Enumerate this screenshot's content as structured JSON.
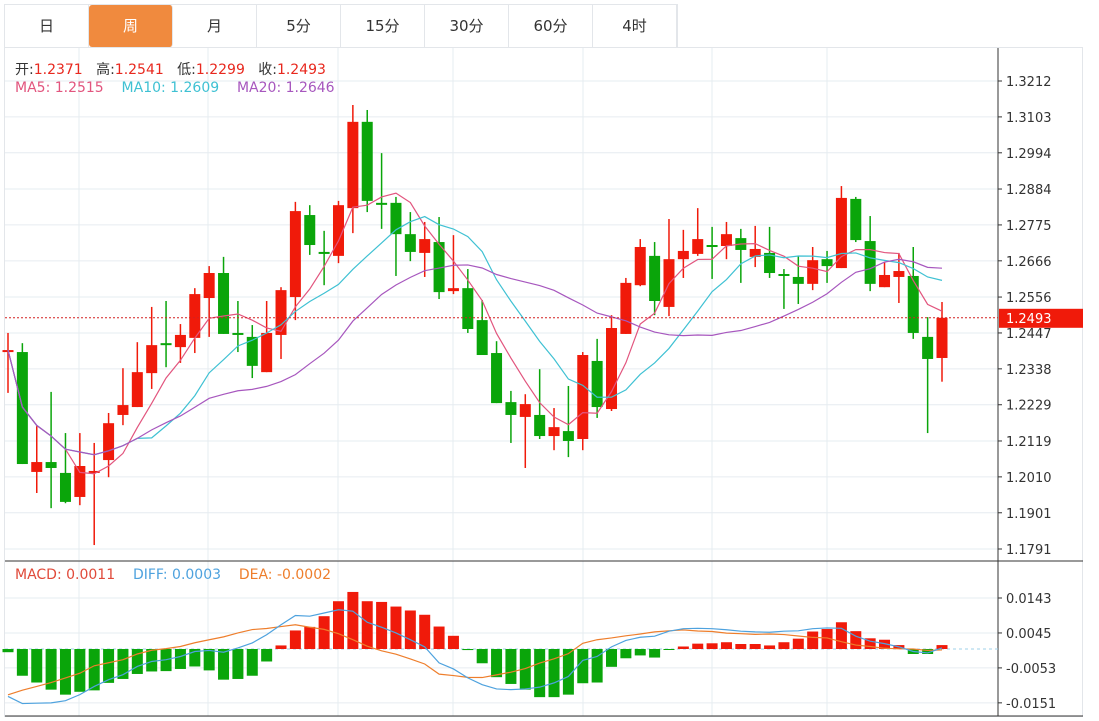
{
  "tabs": [
    "日",
    "周",
    "月",
    "5分",
    "15分",
    "30分",
    "60分",
    "4时"
  ],
  "active_tab": "周",
  "ohlc_legend": {
    "open_label": "开:",
    "open": "1.2371",
    "high_label": "高:",
    "high": "1.2541",
    "low_label": "低:",
    "low": "1.2299",
    "close_label": "收:",
    "close": "1.2493"
  },
  "ma_legend": {
    "ma5": "MA5: 1.2515",
    "ma10": "MA10: 1.2609",
    "ma20": "MA20: 1.2646"
  },
  "macd_legend": {
    "macd": "MACD: 0.0011",
    "diff": "DIFF: 0.0003",
    "dea": "DEA: -0.0002"
  },
  "current_price": "1.2493",
  "colors": {
    "up": "#F01A0A",
    "down": "#0AA50A",
    "ma5": "#E2557E",
    "ma10": "#3FC1D3",
    "ma20": "#A757BE",
    "diff": "#4EA2DE",
    "dea": "#EE7E2C",
    "active_tab": "#F08A3E"
  },
  "chart_data": {
    "type": "candlestick",
    "price_ticks": [
      "1.3212",
      "1.3103",
      "1.2994",
      "1.2884",
      "1.2775",
      "1.2666",
      "1.2556",
      "1.2447",
      "1.2338",
      "1.2229",
      "1.2119",
      "1.2010",
      "1.1901",
      "1.1791"
    ],
    "price_range": [
      1.1791,
      1.3212
    ],
    "macd_ticks": [
      "0.0143",
      "0.0045",
      "-0.0053",
      "-0.0151"
    ],
    "candles": [
      [
        1.2392,
        1.2447,
        1.2265,
        1.2395
      ],
      [
        1.2389,
        1.2416,
        1.2049,
        1.2049
      ],
      [
        1.2025,
        1.2164,
        1.1961,
        1.2055
      ],
      [
        1.2055,
        1.2268,
        1.1915,
        1.2037
      ],
      [
        1.2022,
        1.2143,
        1.193,
        1.1934
      ],
      [
        1.1949,
        1.2143,
        1.1924,
        1.2043
      ],
      [
        1.2022,
        1.2113,
        1.1803,
        1.2028
      ],
      [
        1.2061,
        1.2204,
        1.2009,
        1.2173
      ],
      [
        1.2198,
        1.234,
        1.2167,
        1.2228
      ],
      [
        1.2222,
        1.2419,
        1.2222,
        1.2328
      ],
      [
        1.2325,
        1.2526,
        1.2277,
        1.241
      ],
      [
        1.2416,
        1.2544,
        1.2343,
        1.2413
      ],
      [
        1.2404,
        1.2474,
        1.2356,
        1.2441
      ],
      [
        1.2432,
        1.2583,
        1.2386,
        1.2565
      ],
      [
        1.2553,
        1.265,
        1.2435,
        1.2629
      ],
      [
        1.2629,
        1.2678,
        1.2444,
        1.2444
      ],
      [
        1.2447,
        1.2544,
        1.2389,
        1.2444
      ],
      [
        1.2435,
        1.2471,
        1.231,
        1.2347
      ],
      [
        1.2328,
        1.2544,
        1.2328,
        1.2447
      ],
      [
        1.2441,
        1.2586,
        1.2368,
        1.2577
      ],
      [
        1.2556,
        1.2845,
        1.2486,
        1.2817
      ],
      [
        1.2805,
        1.2835,
        1.2684,
        1.2714
      ],
      [
        1.2693,
        1.2757,
        1.2592,
        1.269
      ],
      [
        1.2681,
        1.2848,
        1.2659,
        1.2835
      ],
      [
        1.2826,
        1.3139,
        1.275,
        1.3088
      ],
      [
        1.3088,
        1.3124,
        1.2814,
        1.2848
      ],
      [
        1.2842,
        1.2993,
        1.2763,
        1.2839
      ],
      [
        1.2842,
        1.286,
        1.262,
        1.2747
      ],
      [
        1.2747,
        1.2814,
        1.2665,
        1.2693
      ],
      [
        1.269,
        1.2784,
        1.2617,
        1.2732
      ],
      [
        1.2723,
        1.2799,
        1.255,
        1.2571
      ],
      [
        1.2574,
        1.2744,
        1.2565,
        1.2583
      ],
      [
        1.2583,
        1.2641,
        1.2447,
        1.2459
      ],
      [
        1.2486,
        1.2547,
        1.238,
        1.238
      ],
      [
        1.2386,
        1.2422,
        1.2234,
        1.2234
      ],
      [
        1.2237,
        1.2271,
        1.2113,
        1.2198
      ],
      [
        1.2192,
        1.2261,
        1.2037,
        1.2231
      ],
      [
        1.2198,
        1.2337,
        1.2125,
        1.2134
      ],
      [
        1.2134,
        1.2219,
        1.2091,
        1.2161
      ],
      [
        1.2149,
        1.2286,
        1.207,
        1.2119
      ],
      [
        1.2125,
        1.2389,
        1.2091,
        1.238
      ],
      [
        1.2362,
        1.2429,
        1.2189,
        1.2222
      ],
      [
        1.2216,
        1.2501,
        1.221,
        1.2462
      ],
      [
        1.2444,
        1.2614,
        1.2444,
        1.2599
      ],
      [
        1.2592,
        1.2732,
        1.2589,
        1.2708
      ],
      [
        1.2681,
        1.2723,
        1.2501,
        1.2544
      ],
      [
        1.2526,
        1.2793,
        1.2498,
        1.2671
      ],
      [
        1.2671,
        1.276,
        1.2614,
        1.2696
      ],
      [
        1.2687,
        1.2826,
        1.2681,
        1.2732
      ],
      [
        1.2714,
        1.2769,
        1.2611,
        1.2711
      ],
      [
        1.2711,
        1.2784,
        1.2671,
        1.2747
      ],
      [
        1.2735,
        1.2763,
        1.2599,
        1.2699
      ],
      [
        1.2678,
        1.2772,
        1.2647,
        1.2702
      ],
      [
        1.269,
        1.2769,
        1.2614,
        1.2629
      ],
      [
        1.2626,
        1.2641,
        1.252,
        1.2623
      ],
      [
        1.2617,
        1.2681,
        1.2535,
        1.2596
      ],
      [
        1.2596,
        1.2708,
        1.2577,
        1.2668
      ],
      [
        1.2671,
        1.2696,
        1.2599,
        1.265
      ],
      [
        1.2644,
        1.2893,
        1.2644,
        1.2857
      ],
      [
        1.2854,
        1.286,
        1.2723,
        1.2729
      ],
      [
        1.2726,
        1.2802,
        1.2574,
        1.2596
      ],
      [
        1.2586,
        1.2662,
        1.2586,
        1.2623
      ],
      [
        1.2617,
        1.269,
        1.2538,
        1.2635
      ],
      [
        1.262,
        1.2708,
        1.2429,
        1.2447
      ],
      [
        1.2435,
        1.2495,
        1.2143,
        1.2368
      ],
      [
        1.2371,
        1.2541,
        1.2299,
        1.2493
      ]
    ],
    "macd": [
      -0.0009,
      -0.0075,
      -0.0094,
      -0.0114,
      -0.0128,
      -0.012,
      -0.0116,
      -0.0095,
      -0.0084,
      -0.007,
      -0.0063,
      -0.0062,
      -0.0056,
      -0.0049,
      -0.006,
      -0.0086,
      -0.0084,
      -0.0075,
      -0.0035,
      0.001,
      0.0052,
      0.0062,
      0.0092,
      0.0134,
      0.016,
      0.0134,
      0.0132,
      0.0119,
      0.0108,
      0.0096,
      0.0063,
      0.0037,
      -0.0003,
      -0.004,
      -0.0079,
      -0.0098,
      -0.0114,
      -0.0135,
      -0.0135,
      -0.0128,
      -0.0096,
      -0.0094,
      -0.005,
      -0.0026,
      -0.0018,
      -0.0024,
      -0.0002,
      0.0007,
      0.0015,
      0.0016,
      0.0019,
      0.0014,
      0.0014,
      0.001,
      0.0019,
      0.0029,
      0.0049,
      0.0056,
      0.0075,
      0.005,
      0.003,
      0.0026,
      0.0011,
      -0.0014,
      -0.0014,
      0.0011
    ],
    "diff": [
      -0.0133,
      -0.0153,
      -0.0152,
      -0.0151,
      -0.0145,
      -0.0128,
      -0.0105,
      -0.0086,
      -0.0072,
      -0.0049,
      -0.0035,
      -0.003,
      -0.0021,
      -0.0007,
      -0.0004,
      -0.0009,
      0.0003,
      0.0017,
      0.004,
      0.0068,
      0.0094,
      0.0092,
      0.0101,
      0.011,
      0.0106,
      0.0075,
      0.0061,
      0.0045,
      0.0026,
      0.0006,
      -0.0039,
      -0.0056,
      -0.0081,
      -0.01,
      -0.0112,
      -0.0114,
      -0.0112,
      -0.0107,
      -0.0095,
      -0.0077,
      -0.0032,
      -0.0021,
      0.0006,
      0.0024,
      0.0033,
      0.0036,
      0.005,
      0.0057,
      0.0058,
      0.0057,
      0.0054,
      0.005,
      0.0048,
      0.0047,
      0.005,
      0.0051,
      0.0057,
      0.0059,
      0.0058,
      0.0036,
      0.0022,
      0.0015,
      0.0006,
      -0.0007,
      -0.0011,
      0.0003
    ]
  }
}
